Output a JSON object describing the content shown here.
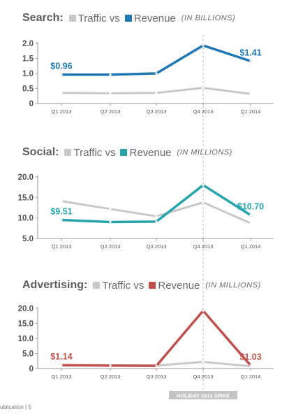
{
  "panels": [
    {
      "title": "Search:",
      "legend_traffic": "Traffic vs",
      "legend_revenue": "Revenue",
      "unit": "(IN BILLIONS)"
    },
    {
      "title": "Social:",
      "legend_traffic": "Traffic vs",
      "legend_revenue": "Revenue",
      "unit": "(IN MILLIONS)"
    },
    {
      "title": "Advertising:",
      "legend_traffic": "Traffic vs",
      "legend_revenue": "Revenue",
      "unit": "(IN MILLIONS)"
    }
  ],
  "spike_label": "HOLIDAY 2013 SPIKE",
  "footer": "ublication | 5",
  "colors": {
    "traffic": "#c8c8c8",
    "search": "#1f77b4",
    "social": "#27a4ac",
    "advertising": "#c0504d",
    "axis": "#999999",
    "tick_text": "#555555",
    "spike": "#bbbbbb"
  },
  "chart_data": [
    {
      "type": "line",
      "categories": [
        "Q1 2013",
        "Q2 2013",
        "Q3 2013",
        "Q4 2013",
        "Q1 2014"
      ],
      "ylim": [
        0,
        2
      ],
      "yticks": [
        "0",
        "0.5",
        "1.0",
        "1.5",
        "2.0"
      ],
      "series": [
        {
          "name": "Traffic",
          "values": [
            0.35,
            0.34,
            0.35,
            0.52,
            0.32
          ]
        },
        {
          "name": "Revenue",
          "values": [
            0.96,
            0.96,
            1.0,
            1.93,
            1.41
          ]
        }
      ],
      "labels": [
        {
          "text": "$0.96",
          "index": 0
        },
        {
          "text": "$1.41",
          "index": 4
        }
      ]
    },
    {
      "type": "line",
      "categories": [
        "Q1 2013",
        "Q2 2013",
        "Q3 2013",
        "Q4 2013",
        "Q1 2014"
      ],
      "ylim": [
        5,
        20
      ],
      "yticks": [
        "5.0",
        "10.0",
        "15.0",
        "20.0"
      ],
      "series": [
        {
          "name": "Traffic",
          "values": [
            14.1,
            12.2,
            10.4,
            13.8,
            8.7
          ]
        },
        {
          "name": "Revenue",
          "values": [
            9.51,
            9.0,
            9.1,
            18.0,
            10.7
          ]
        }
      ],
      "labels": [
        {
          "text": "$9.51",
          "index": 0
        },
        {
          "text": "$10.70",
          "index": 4
        }
      ]
    },
    {
      "type": "line",
      "categories": [
        "Q1 2013",
        "Q2 2013",
        "Q3 2013",
        "Q4 2013",
        "Q1 2014"
      ],
      "ylim": [
        0,
        20
      ],
      "yticks": [
        "0",
        "5.0",
        "10.0",
        "15.0",
        "20.0"
      ],
      "series": [
        {
          "name": "Traffic",
          "values": [
            1.1,
            1.0,
            1.0,
            2.2,
            0.8
          ]
        },
        {
          "name": "Revenue",
          "values": [
            1.14,
            1.0,
            0.9,
            19.2,
            1.03
          ]
        }
      ],
      "labels": [
        {
          "text": "$1.14",
          "index": 0
        },
        {
          "text": "$1.03",
          "index": 4
        }
      ]
    }
  ]
}
